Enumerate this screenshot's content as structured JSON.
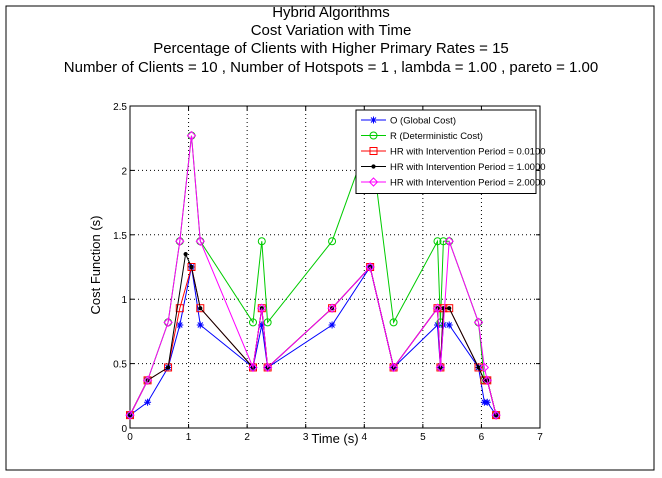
{
  "chart_data": {
    "type": "line",
    "title_lines": [
      "Hybrid Algorithms",
      "Cost Variation with Time",
      "Percentage of Clients with Higher Primary Rates = 15",
      "Number of Clients = 10 , Number of Hotspots = 1 , lambda = 1.00 , pareto = 1.00"
    ],
    "xlabel": "Time (s)",
    "ylabel": "Cost Function (s)",
    "xlim": [
      0,
      7
    ],
    "ylim": [
      0,
      2.5
    ],
    "xticks": [
      "0",
      "1",
      "2",
      "3",
      "4",
      "5",
      "6",
      "7"
    ],
    "yticks": [
      "0",
      "0.5",
      "1",
      "1.5",
      "2",
      "2.5"
    ],
    "grid": "dotted",
    "legend_position": "top-right",
    "series": [
      {
        "name": "O (Global Cost)",
        "color": "#0000ff",
        "marker": "star",
        "x": [
          0.0,
          0.3,
          0.65,
          0.85,
          1.05,
          1.2,
          2.1,
          2.25,
          2.35,
          3.45,
          4.1,
          4.5,
          5.25,
          5.3,
          5.35,
          5.45,
          5.95,
          6.05,
          6.1,
          6.25
        ],
        "y": [
          0.1,
          0.2,
          0.47,
          0.8,
          1.25,
          0.8,
          0.47,
          0.8,
          0.47,
          0.8,
          1.25,
          0.47,
          0.8,
          0.47,
          0.8,
          0.8,
          0.47,
          0.2,
          0.2,
          0.1
        ]
      },
      {
        "name": "R (Deterministic Cost)",
        "color": "#00cc00",
        "marker": "circle",
        "x": [
          0.0,
          0.3,
          0.65,
          0.85,
          1.05,
          1.2,
          2.1,
          2.25,
          2.35,
          3.45,
          4.1,
          4.5,
          5.25,
          5.3,
          5.35,
          5.45,
          5.95,
          6.05,
          6.1,
          6.25
        ],
        "y": [
          0.1,
          0.37,
          0.82,
          1.45,
          2.27,
          1.45,
          0.82,
          1.45,
          0.82,
          1.45,
          2.27,
          0.82,
          1.45,
          0.82,
          1.45,
          1.45,
          0.82,
          0.37,
          0.37,
          0.1
        ]
      },
      {
        "name": "HR with Intervention Period = 0.0100",
        "color": "#ff0000",
        "marker": "square",
        "x": [
          0.0,
          0.3,
          0.65,
          0.85,
          1.05,
          1.2,
          2.1,
          2.25,
          2.35,
          3.45,
          4.1,
          4.5,
          5.25,
          5.3,
          5.35,
          5.45,
          5.95,
          6.05,
          6.1,
          6.25
        ],
        "y": [
          0.1,
          0.37,
          0.47,
          0.93,
          1.25,
          0.93,
          0.47,
          0.93,
          0.47,
          0.93,
          1.25,
          0.47,
          0.93,
          0.47,
          0.93,
          0.93,
          0.47,
          0.37,
          0.37,
          0.1
        ]
      },
      {
        "name": "HR with Intervention Period = 1.0000",
        "color": "#000000",
        "marker": "dot",
        "x": [
          0.0,
          0.3,
          0.65,
          0.95,
          1.05,
          1.2,
          2.1,
          2.25,
          2.35,
          3.45,
          4.1,
          4.5,
          5.25,
          5.3,
          5.35,
          5.45,
          5.95,
          6.05,
          6.1,
          6.25
        ],
        "y": [
          0.1,
          0.37,
          0.47,
          1.35,
          1.25,
          0.93,
          0.47,
          0.93,
          0.47,
          0.93,
          1.25,
          0.47,
          0.93,
          0.47,
          0.93,
          0.93,
          0.47,
          0.37,
          0.37,
          0.1
        ]
      },
      {
        "name": "HR with Intervention Period = 2.0000",
        "color": "#ff00ff",
        "marker": "diamond",
        "x": [
          0.0,
          0.3,
          0.65,
          0.85,
          1.05,
          1.2,
          2.1,
          2.25,
          2.35,
          3.45,
          4.1,
          4.5,
          5.25,
          5.3,
          5.45,
          5.95,
          6.05,
          6.1,
          6.25
        ],
        "y": [
          0.1,
          0.37,
          0.82,
          1.45,
          2.27,
          1.45,
          0.47,
          0.93,
          0.47,
          0.93,
          1.25,
          0.47,
          0.93,
          0.47,
          1.45,
          0.82,
          0.47,
          0.37,
          0.1
        ]
      }
    ]
  }
}
